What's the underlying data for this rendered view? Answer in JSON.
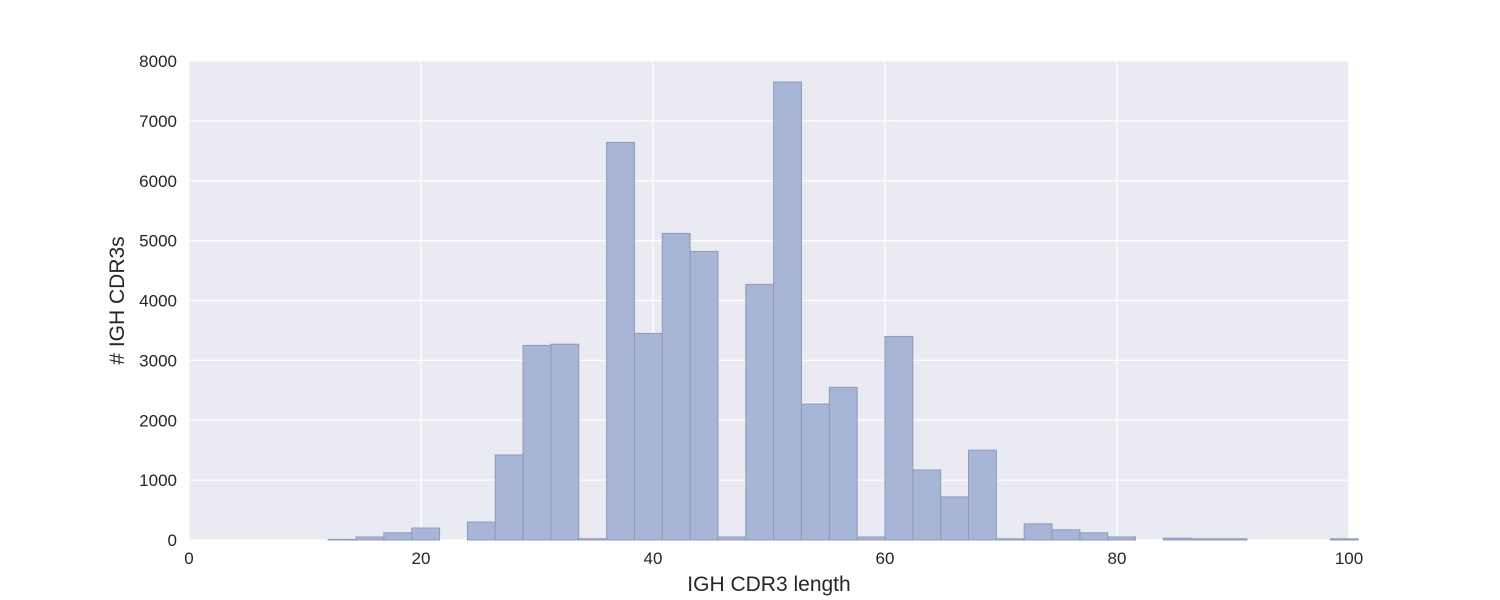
{
  "chart_data": {
    "type": "bar",
    "xlabel": "IGH CDR3 length",
    "ylabel": "# IGH CDR3s",
    "xlim": [
      0,
      100
    ],
    "ylim": [
      0,
      8000
    ],
    "xticks": [
      0,
      20,
      40,
      60,
      80,
      100
    ],
    "yticks": [
      0,
      1000,
      2000,
      3000,
      4000,
      5000,
      6000,
      7000,
      8000
    ],
    "grid": true,
    "bin_width": 2.4,
    "bins": [
      {
        "x0": 12.0,
        "count": 10
      },
      {
        "x0": 14.4,
        "count": 50
      },
      {
        "x0": 16.8,
        "count": 120
      },
      {
        "x0": 19.2,
        "count": 200
      },
      {
        "x0": 21.6,
        "count": 0
      },
      {
        "x0": 24.0,
        "count": 300
      },
      {
        "x0": 26.4,
        "count": 1420
      },
      {
        "x0": 28.8,
        "count": 3250
      },
      {
        "x0": 31.2,
        "count": 3270
      },
      {
        "x0": 33.6,
        "count": 20
      },
      {
        "x0": 36.0,
        "count": 6640
      },
      {
        "x0": 38.4,
        "count": 3450
      },
      {
        "x0": 40.8,
        "count": 5120
      },
      {
        "x0": 43.2,
        "count": 4820
      },
      {
        "x0": 45.6,
        "count": 50
      },
      {
        "x0": 48.0,
        "count": 4270
      },
      {
        "x0": 50.4,
        "count": 7650
      },
      {
        "x0": 52.8,
        "count": 2270
      },
      {
        "x0": 55.2,
        "count": 2550
      },
      {
        "x0": 57.6,
        "count": 50
      },
      {
        "x0": 60.0,
        "count": 3400
      },
      {
        "x0": 62.4,
        "count": 1170
      },
      {
        "x0": 64.8,
        "count": 720
      },
      {
        "x0": 67.2,
        "count": 1500
      },
      {
        "x0": 69.6,
        "count": 20
      },
      {
        "x0": 72.0,
        "count": 270
      },
      {
        "x0": 74.4,
        "count": 170
      },
      {
        "x0": 76.8,
        "count": 120
      },
      {
        "x0": 79.2,
        "count": 50
      },
      {
        "x0": 81.6,
        "count": 0
      },
      {
        "x0": 84.0,
        "count": 30
      },
      {
        "x0": 86.4,
        "count": 20
      },
      {
        "x0": 88.8,
        "count": 20
      },
      {
        "x0": 91.2,
        "count": 0
      },
      {
        "x0": 93.6,
        "count": 0
      },
      {
        "x0": 96.0,
        "count": 0
      },
      {
        "x0": 98.4,
        "count": 20
      }
    ],
    "colors": {
      "bar_fill": "#a7b5d6",
      "background": "#eaeaf2",
      "grid": "#ffffff"
    }
  }
}
